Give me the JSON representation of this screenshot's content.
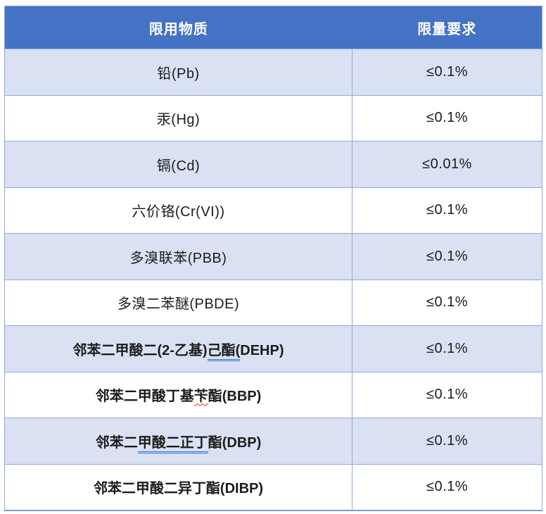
{
  "colors": {
    "header_bg": "#4472C4",
    "header_text": "#FFFFFF",
    "row_alt_bg": "#D9E1F2",
    "row_bg": "#FFFFFF",
    "border": "#8EAADB",
    "grammar_underline": "#2E6FD6",
    "spell_underline": "#E02B20",
    "body_text": "#1C1C1C"
  },
  "table": {
    "headers": [
      {
        "label": "限用物质"
      },
      {
        "label": "限量要求"
      }
    ],
    "rows": [
      {
        "bold": false,
        "limit": "≤0.1%",
        "substance_parts": [
          {
            "text": "铅(Pb)"
          }
        ]
      },
      {
        "bold": false,
        "limit": "≤0.1%",
        "substance_parts": [
          {
            "text": "汞(Hg)"
          }
        ]
      },
      {
        "bold": false,
        "limit": "≤0.01%",
        "substance_parts": [
          {
            "text": "镉(Cd)"
          }
        ]
      },
      {
        "bold": false,
        "limit": "≤0.1%",
        "substance_parts": [
          {
            "text": "六价铬(Cr(VI))"
          }
        ]
      },
      {
        "bold": false,
        "limit": "≤0.1%",
        "substance_parts": [
          {
            "text": "多溴联苯(PBB)"
          }
        ]
      },
      {
        "bold": false,
        "limit": "≤0.1%",
        "substance_parts": [
          {
            "text": "多溴二苯醚(PBDE)"
          }
        ]
      },
      {
        "bold": true,
        "limit": "≤0.1%",
        "substance_parts": [
          {
            "text": "邻苯二甲酸二(2-乙基)"
          },
          {
            "text": "己酯(",
            "mark": "grammar"
          },
          {
            "text": "DEHP)"
          }
        ]
      },
      {
        "bold": true,
        "limit": "≤0.1%",
        "substance_parts": [
          {
            "text": "邻苯二甲酸丁基"
          },
          {
            "text": "苄",
            "mark": "spell"
          },
          {
            "text": "酯(BBP)"
          }
        ]
      },
      {
        "bold": true,
        "limit": "≤0.1%",
        "substance_parts": [
          {
            "text": "邻苯二"
          },
          {
            "text": "甲酸二正丁",
            "mark": "grammar"
          },
          {
            "text": "酯(DBP)"
          }
        ]
      },
      {
        "bold": true,
        "limit": "≤0.1%",
        "substance_parts": [
          {
            "text": "邻苯二甲酸二异丁酯(DIBP)"
          }
        ]
      }
    ]
  }
}
